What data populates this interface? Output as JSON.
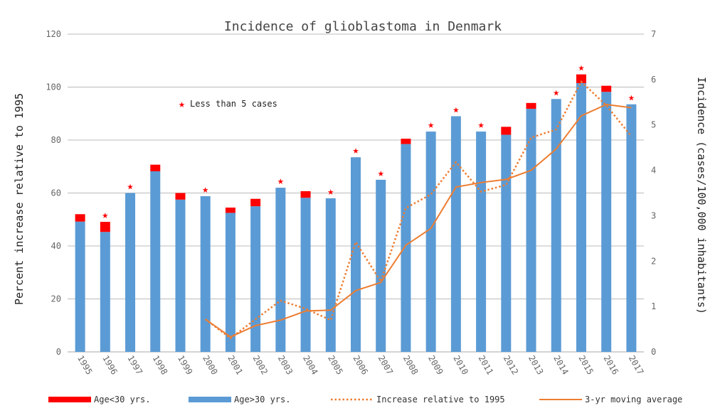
{
  "chart_data": {
    "type": "bar",
    "title": "Incidence of glioblastoma in Denmark",
    "ylabel": "Percent increase relative to 1995",
    "y2label": "Incidence (cases/100,000 inhabitants)",
    "ylim": [
      0,
      120
    ],
    "y2lim": [
      0,
      7
    ],
    "grid": true,
    "legend_position": "bottom",
    "note": "Less than 5 cases",
    "categories": [
      "1995",
      "1996",
      "1997",
      "1998",
      "1999",
      "2000",
      "2001",
      "2002",
      "2003",
      "2004",
      "2005",
      "2006",
      "2007",
      "2008",
      "2009",
      "2010",
      "2011",
      "2012",
      "2013",
      "2014",
      "2015",
      "2016",
      "2017"
    ],
    "stacked_series": [
      {
        "name": "Age>30 yrs.",
        "color": "#5b9bd5",
        "values": [
          49.2,
          45.3,
          60.0,
          68.2,
          57.5,
          58.8,
          52.5,
          55.0,
          62.0,
          58.2,
          58.0,
          73.5,
          65.0,
          78.5,
          83.2,
          89.0,
          83.2,
          82.0,
          91.8,
          95.5,
          101.5,
          98.2,
          93.5
        ]
      },
      {
        "name": "Age<30 yrs.",
        "color": "#ff0000",
        "values": [
          2.8,
          3.8,
          0,
          2.5,
          2.5,
          0,
          2.0,
          2.8,
          0,
          2.5,
          0,
          0,
          0,
          2.0,
          0,
          0,
          0,
          3.0,
          2.2,
          0,
          3.3,
          2.3,
          0
        ]
      }
    ],
    "less_than_5_markers": [
      "1996",
      "1997",
      "2000",
      "2003",
      "2005",
      "2006",
      "2007",
      "2009",
      "2010",
      "2011",
      "2014",
      "2015",
      "2017"
    ],
    "line_series": [
      {
        "name": "Increase relative to 1995",
        "color": "#ed7d31",
        "dashed": true,
        "x": [
          "2000",
          "2001",
          "2002",
          "2003",
          "2004",
          "2005",
          "2006",
          "2007",
          "2008",
          "2009",
          "2010",
          "2011",
          "2012",
          "2013",
          "2014",
          "2015",
          "2016",
          "2017"
        ],
        "values": [
          0.72,
          0.3,
          0.72,
          1.13,
          0.95,
          0.7,
          2.42,
          1.55,
          3.17,
          3.47,
          4.18,
          3.53,
          3.68,
          4.72,
          4.9,
          5.95,
          5.43,
          4.75
        ]
      },
      {
        "name": "3-yr moving average",
        "color": "#ed7d31",
        "dashed": false,
        "x": [
          "2000",
          "2001",
          "2002",
          "2003",
          "2004",
          "2005",
          "2006",
          "2007",
          "2008",
          "2009",
          "2010",
          "2011",
          "2012",
          "2013",
          "2014",
          "2015",
          "2016",
          "2017"
        ],
        "values": [
          0.72,
          0.33,
          0.58,
          0.7,
          0.9,
          0.92,
          1.35,
          1.53,
          2.35,
          2.72,
          3.63,
          3.73,
          3.8,
          4.0,
          4.47,
          5.2,
          5.45,
          5.38
        ]
      }
    ],
    "legend": [
      {
        "label": "Age<30 yrs.",
        "color": "#ff0000",
        "style": "bar"
      },
      {
        "label": "Age>30 yrs.",
        "color": "#5b9bd5",
        "style": "bar"
      },
      {
        "label": "Increase relative to 1995",
        "color": "#ed7d31",
        "style": "dotted"
      },
      {
        "label": "3-yr moving average",
        "color": "#ed7d31",
        "style": "solid"
      }
    ]
  }
}
